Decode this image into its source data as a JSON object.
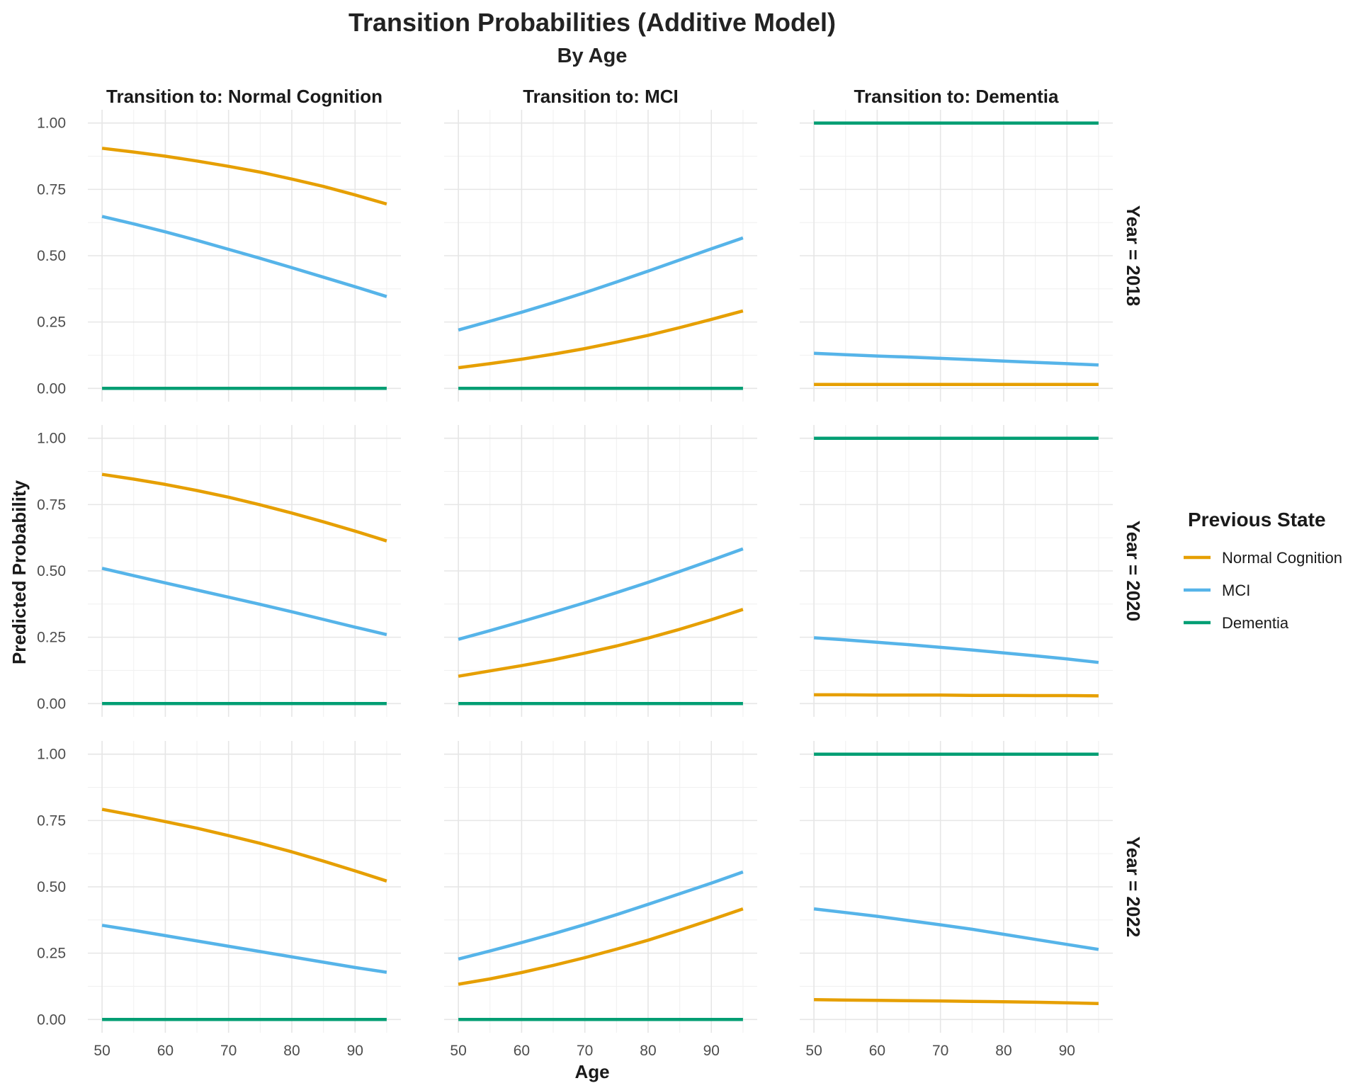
{
  "chart_data": {
    "type": "line",
    "title": "Transition Probabilities (Additive Model)",
    "subtitle": "By Age",
    "xlabel": "Age",
    "ylabel": "Predicted Probability",
    "xlim": [
      50,
      95
    ],
    "ylim": [
      0,
      1
    ],
    "x_ticks": [
      50,
      60,
      70,
      80,
      90
    ],
    "y_ticks": [
      "0.00",
      "0.25",
      "0.50",
      "0.75",
      "1.00"
    ],
    "grid": true,
    "legend": {
      "title": "Previous State",
      "placement": "right",
      "entries": [
        {
          "name": "Normal Cognition",
          "color": "#E69F00"
        },
        {
          "name": "MCI",
          "color": "#56B4E9"
        },
        {
          "name": "Dementia",
          "color": "#009E73"
        }
      ]
    },
    "columns": [
      "Transition to: Normal Cognition",
      "Transition to: MCI",
      "Transition to: Dementia"
    ],
    "rows": [
      "Year = 2018",
      "Year = 2020",
      "Year = 2022"
    ],
    "x": [
      50,
      55,
      60,
      65,
      70,
      75,
      80,
      85,
      90,
      95
    ],
    "panels": [
      [
        {
          "series": [
            {
              "name": "Normal Cognition",
              "values": [
                0.905,
                0.891,
                0.875,
                0.857,
                0.837,
                0.815,
                0.789,
                0.761,
                0.729,
                0.695
              ]
            },
            {
              "name": "MCI",
              "values": [
                0.648,
                0.62,
                0.59,
                0.558,
                0.524,
                0.49,
                0.455,
                0.419,
                0.383,
                0.346
              ]
            },
            {
              "name": "Dementia",
              "values": [
                0,
                0,
                0,
                0,
                0,
                0,
                0,
                0,
                0,
                0
              ]
            }
          ]
        },
        {
          "series": [
            {
              "name": "Normal Cognition",
              "values": [
                0.078,
                0.093,
                0.11,
                0.129,
                0.15,
                0.174,
                0.2,
                0.229,
                0.26,
                0.292
              ]
            },
            {
              "name": "MCI",
              "values": [
                0.22,
                0.253,
                0.287,
                0.323,
                0.361,
                0.401,
                0.442,
                0.484,
                0.526,
                0.567
              ]
            },
            {
              "name": "Dementia",
              "values": [
                0,
                0,
                0,
                0,
                0,
                0,
                0,
                0,
                0,
                0
              ]
            }
          ]
        },
        {
          "series": [
            {
              "name": "Normal Cognition",
              "values": [
                0.015,
                0.015,
                0.015,
                0.015,
                0.015,
                0.015,
                0.015,
                0.015,
                0.015,
                0.015
              ]
            },
            {
              "name": "MCI",
              "values": [
                0.132,
                0.127,
                0.122,
                0.118,
                0.113,
                0.108,
                0.103,
                0.098,
                0.093,
                0.088
              ]
            },
            {
              "name": "Dementia",
              "values": [
                1,
                1,
                1,
                1,
                1,
                1,
                1,
                1,
                1,
                1
              ]
            }
          ]
        }
      ],
      [
        {
          "series": [
            {
              "name": "Normal Cognition",
              "values": [
                0.864,
                0.846,
                0.826,
                0.803,
                0.778,
                0.749,
                0.718,
                0.685,
                0.65,
                0.613
              ]
            },
            {
              "name": "MCI",
              "values": [
                0.51,
                0.482,
                0.455,
                0.428,
                0.401,
                0.374,
                0.346,
                0.317,
                0.288,
                0.26
              ]
            },
            {
              "name": "Dementia",
              "values": [
                0,
                0,
                0,
                0,
                0,
                0,
                0,
                0,
                0,
                0
              ]
            }
          ]
        },
        {
          "series": [
            {
              "name": "Normal Cognition",
              "values": [
                0.103,
                0.123,
                0.143,
                0.165,
                0.19,
                0.217,
                0.247,
                0.28,
                0.316,
                0.355
              ]
            },
            {
              "name": "MCI",
              "values": [
                0.242,
                0.275,
                0.309,
                0.344,
                0.38,
                0.418,
                0.457,
                0.498,
                0.54,
                0.583
              ]
            },
            {
              "name": "Dementia",
              "values": [
                0,
                0,
                0,
                0,
                0,
                0,
                0,
                0,
                0,
                0
              ]
            }
          ]
        },
        {
          "series": [
            {
              "name": "Normal Cognition",
              "values": [
                0.033,
                0.033,
                0.032,
                0.032,
                0.032,
                0.031,
                0.031,
                0.03,
                0.03,
                0.029
              ]
            },
            {
              "name": "MCI",
              "values": [
                0.248,
                0.24,
                0.231,
                0.222,
                0.212,
                0.202,
                0.191,
                0.18,
                0.168,
                0.155
              ]
            },
            {
              "name": "Dementia",
              "values": [
                1,
                1,
                1,
                1,
                1,
                1,
                1,
                1,
                1,
                1
              ]
            }
          ]
        }
      ],
      [
        {
          "series": [
            {
              "name": "Normal Cognition",
              "values": [
                0.792,
                0.77,
                0.746,
                0.721,
                0.693,
                0.664,
                0.632,
                0.597,
                0.56,
                0.522
              ]
            },
            {
              "name": "MCI",
              "values": [
                0.355,
                0.336,
                0.316,
                0.296,
                0.276,
                0.256,
                0.236,
                0.216,
                0.196,
                0.178
              ]
            },
            {
              "name": "Dementia",
              "values": [
                0,
                0,
                0,
                0,
                0,
                0,
                0,
                0,
                0,
                0
              ]
            }
          ]
        },
        {
          "series": [
            {
              "name": "Normal Cognition",
              "values": [
                0.133,
                0.153,
                0.177,
                0.204,
                0.233,
                0.265,
                0.299,
                0.337,
                0.376,
                0.417
              ]
            },
            {
              "name": "MCI",
              "values": [
                0.228,
                0.258,
                0.29,
                0.323,
                0.358,
                0.395,
                0.434,
                0.474,
                0.514,
                0.556
              ]
            },
            {
              "name": "Dementia",
              "values": [
                0,
                0,
                0,
                0,
                0,
                0,
                0,
                0,
                0,
                0
              ]
            }
          ]
        },
        {
          "series": [
            {
              "name": "Normal Cognition",
              "values": [
                0.075,
                0.073,
                0.072,
                0.071,
                0.07,
                0.068,
                0.067,
                0.065,
                0.063,
                0.06
              ]
            },
            {
              "name": "MCI",
              "values": [
                0.417,
                0.403,
                0.389,
                0.373,
                0.357,
                0.34,
                0.321,
                0.302,
                0.283,
                0.264
              ]
            },
            {
              "name": "Dementia",
              "values": [
                1,
                1,
                1,
                1,
                1,
                1,
                1,
                1,
                1,
                1
              ]
            }
          ]
        }
      ]
    ]
  }
}
